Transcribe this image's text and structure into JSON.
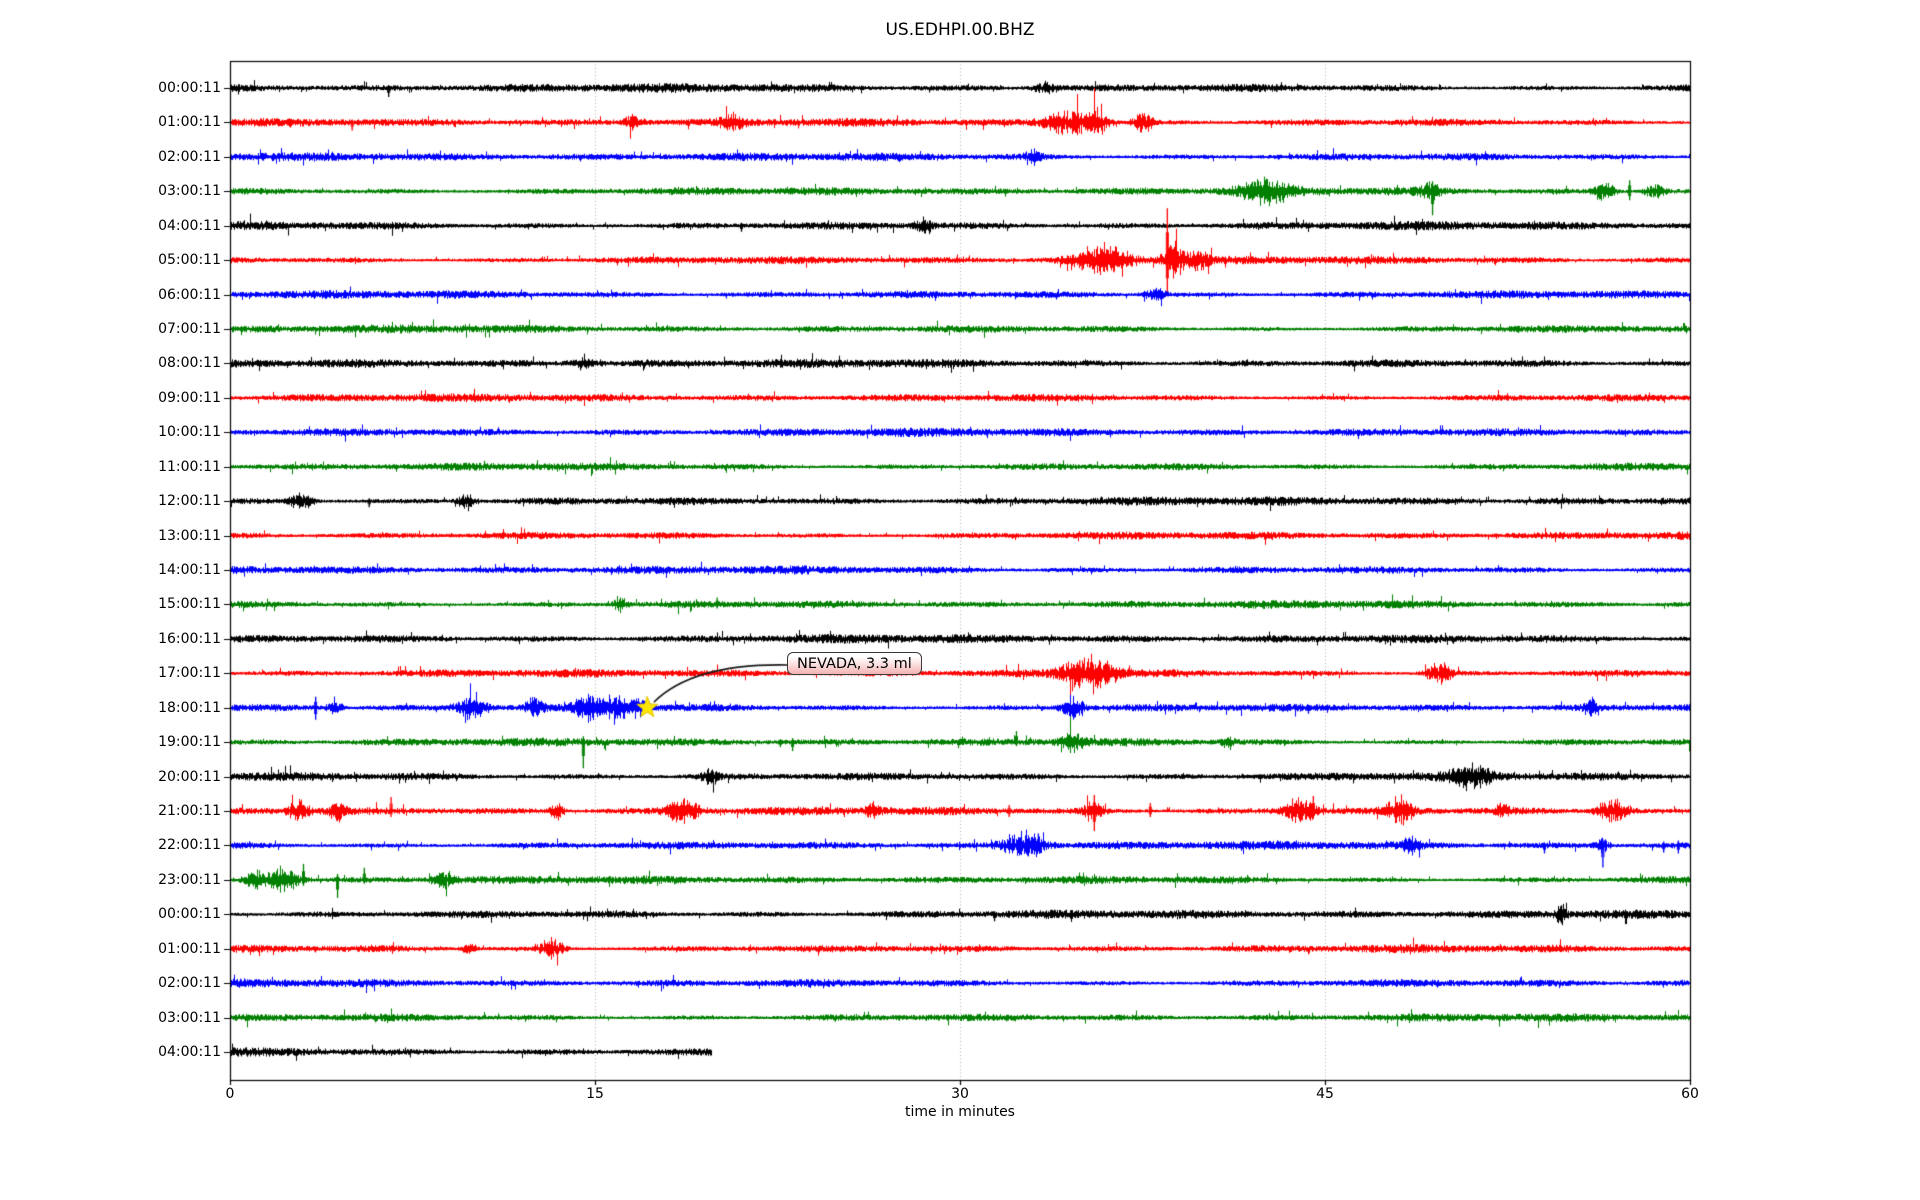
{
  "chart_data": {
    "type": "line",
    "variant": "helicorder-day-plot",
    "title": "US.EDHPI.00.BHZ",
    "xlabel": "time in minutes",
    "xlim": [
      0,
      60
    ],
    "x_ticks": [
      0,
      15,
      30,
      45,
      60
    ],
    "grid": {
      "vertical_dotted_at": [
        15,
        30,
        45
      ],
      "color": "#b0b0b0"
    },
    "color_cycle": [
      "#000000",
      "#ff0000",
      "#0000ff",
      "#008000"
    ],
    "annotation": {
      "text": "NEVADA, 3.3 ml",
      "row_index": 18,
      "row_label": "18:00:11",
      "minute": 17.15,
      "marker": "yellow-star",
      "star_color": "#ffe600",
      "box_colors": [
        "#ffffff",
        "#f3b2b2"
      ]
    },
    "rows": [
      {
        "label": "00:00:11",
        "color": "#000000",
        "base": 2.4,
        "end": 60,
        "events": [
          {
            "t": "spike",
            "m": 6.5,
            "up": 3,
            "dn": 9
          },
          {
            "t": "burst",
            "m": 33.5,
            "d": 0.8,
            "a": 4
          },
          {
            "t": "spike",
            "m": 43.0,
            "up": 4,
            "dn": 4
          }
        ]
      },
      {
        "label": "01:00:11",
        "color": "#ff0000",
        "base": 2.2,
        "end": 60,
        "events": [
          {
            "t": "spike",
            "m": 5.0,
            "up": 3,
            "dn": 8
          },
          {
            "t": "burst",
            "m": 16.6,
            "d": 0.7,
            "a": 5
          },
          {
            "t": "burst",
            "m": 20.6,
            "d": 0.8,
            "a": 5
          },
          {
            "t": "burst",
            "m": 34.3,
            "d": 1.6,
            "a": 8
          },
          {
            "t": "burst",
            "m": 35.6,
            "d": 1.0,
            "a": 7
          },
          {
            "t": "burst",
            "m": 37.5,
            "d": 0.7,
            "a": 6
          }
        ]
      },
      {
        "label": "02:00:11",
        "color": "#0000ff",
        "base": 2.3,
        "end": 60,
        "events": [
          {
            "t": "burst",
            "m": 33.0,
            "d": 0.6,
            "a": 4
          }
        ]
      },
      {
        "label": "03:00:11",
        "color": "#008000",
        "base": 2.2,
        "end": 60,
        "events": [
          {
            "t": "burst",
            "m": 42.5,
            "d": 1.8,
            "a": 8
          },
          {
            "t": "spike",
            "m": 42.0,
            "up": 9,
            "dn": 9
          },
          {
            "t": "spike",
            "m": 49.4,
            "up": 10,
            "dn": 24
          },
          {
            "t": "burst",
            "m": 49.3,
            "d": 0.8,
            "a": 5
          },
          {
            "t": "burst",
            "m": 56.4,
            "d": 0.8,
            "a": 6
          },
          {
            "t": "spike",
            "m": 57.5,
            "up": 11,
            "dn": 9
          },
          {
            "t": "burst",
            "m": 58.6,
            "d": 0.8,
            "a": 5
          }
        ]
      },
      {
        "label": "04:00:11",
        "color": "#000000",
        "base": 2.4,
        "end": 60,
        "events": [
          {
            "t": "spike",
            "m": 21.0,
            "up": 3,
            "dn": 6
          },
          {
            "t": "burst",
            "m": 28.5,
            "d": 0.6,
            "a": 4
          }
        ]
      },
      {
        "label": "05:00:11",
        "color": "#ff0000",
        "base": 2.2,
        "end": 60,
        "events": [
          {
            "t": "burst",
            "m": 35.8,
            "d": 2.2,
            "a": 8
          },
          {
            "t": "spike",
            "m": 35.0,
            "up": 5,
            "dn": 10
          },
          {
            "t": "spike",
            "m": 36.3,
            "up": 5,
            "dn": 12
          },
          {
            "t": "spike",
            "m": 38.5,
            "up": 52,
            "dn": 34
          },
          {
            "t": "burst",
            "m": 38.8,
            "d": 0.8,
            "a": 10
          },
          {
            "t": "burst",
            "m": 39.8,
            "d": 0.8,
            "a": 5
          }
        ]
      },
      {
        "label": "06:00:11",
        "color": "#0000ff",
        "base": 2.3,
        "end": 60,
        "events": [
          {
            "t": "burst",
            "m": 38.0,
            "d": 0.8,
            "a": 4
          }
        ]
      },
      {
        "label": "07:00:11",
        "color": "#008000",
        "base": 2.2,
        "end": 60,
        "events": []
      },
      {
        "label": "08:00:11",
        "color": "#000000",
        "base": 2.4,
        "end": 60,
        "events": [
          {
            "t": "burst",
            "m": 14.5,
            "d": 1.0,
            "a": 3
          }
        ]
      },
      {
        "label": "09:00:11",
        "color": "#ff0000",
        "base": 2.2,
        "end": 60,
        "events": []
      },
      {
        "label": "10:00:11",
        "color": "#0000ff",
        "base": 2.3,
        "end": 60,
        "events": []
      },
      {
        "label": "11:00:11",
        "color": "#008000",
        "base": 2.2,
        "end": 60,
        "events": []
      },
      {
        "label": "12:00:11",
        "color": "#000000",
        "base": 2.4,
        "end": 60,
        "events": [
          {
            "t": "burst",
            "m": 2.9,
            "d": 0.9,
            "a": 5
          },
          {
            "t": "spike",
            "m": 5.7,
            "up": 3,
            "dn": 6
          },
          {
            "t": "burst",
            "m": 9.7,
            "d": 0.7,
            "a": 4
          }
        ]
      },
      {
        "label": "13:00:11",
        "color": "#ff0000",
        "base": 2.2,
        "end": 60,
        "events": []
      },
      {
        "label": "14:00:11",
        "color": "#0000ff",
        "base": 2.3,
        "end": 60,
        "events": []
      },
      {
        "label": "15:00:11",
        "color": "#008000",
        "base": 2.2,
        "end": 60,
        "events": [
          {
            "t": "burst",
            "m": 16.0,
            "d": 0.5,
            "a": 4
          },
          {
            "t": "spike",
            "m": 20.0,
            "up": 7,
            "dn": 4
          }
        ]
      },
      {
        "label": "16:00:11",
        "color": "#000000",
        "base": 2.4,
        "end": 60,
        "events": []
      },
      {
        "label": "17:00:11",
        "color": "#ff0000",
        "base": 2.2,
        "end": 60,
        "events": [
          {
            "t": "burst",
            "m": 35.3,
            "d": 1.9,
            "a": 10
          },
          {
            "t": "spike",
            "m": 34.9,
            "up": 13,
            "dn": 13
          },
          {
            "t": "spike",
            "m": 36.1,
            "up": 9,
            "dn": 9
          },
          {
            "t": "burst",
            "m": 49.7,
            "d": 0.9,
            "a": 6
          }
        ]
      },
      {
        "label": "18:00:11",
        "color": "#0000ff",
        "base": 2.3,
        "end": 60,
        "events": [
          {
            "t": "spike",
            "m": 3.5,
            "up": 11,
            "dn": 12
          },
          {
            "t": "burst",
            "m": 4.3,
            "d": 0.5,
            "a": 5
          },
          {
            "t": "burst",
            "m": 9.9,
            "d": 1.1,
            "a": 7
          },
          {
            "t": "burst",
            "m": 12.5,
            "d": 0.6,
            "a": 6
          },
          {
            "t": "burst",
            "m": 14.6,
            "d": 0.9,
            "a": 7
          },
          {
            "t": "burst",
            "m": 15.8,
            "d": 1.2,
            "a": 8
          },
          {
            "t": "burst",
            "m": 16.8,
            "d": 0.6,
            "a": 6
          },
          {
            "t": "burst",
            "m": 34.6,
            "d": 0.8,
            "a": 8
          },
          {
            "t": "spike",
            "m": 44.3,
            "up": 3,
            "dn": 6
          },
          {
            "t": "burst",
            "m": 55.9,
            "d": 0.5,
            "a": 5
          }
        ]
      },
      {
        "label": "19:00:11",
        "color": "#008000",
        "base": 2.2,
        "end": 60,
        "events": [
          {
            "t": "spike",
            "m": 14.5,
            "up": 6,
            "dn": 26
          },
          {
            "t": "spike",
            "m": 22.6,
            "up": 3,
            "dn": 5
          },
          {
            "t": "spike",
            "m": 23.1,
            "up": 4,
            "dn": 9
          },
          {
            "t": "spike",
            "m": 32.3,
            "up": 11,
            "dn": 4
          },
          {
            "t": "burst",
            "m": 34.6,
            "d": 0.9,
            "a": 5
          },
          {
            "t": "burst",
            "m": 41.0,
            "d": 0.4,
            "a": 4
          }
        ]
      },
      {
        "label": "20:00:11",
        "color": "#000000",
        "base": 2.4,
        "end": 60,
        "events": [
          {
            "t": "burst",
            "m": 19.7,
            "d": 0.6,
            "a": 5
          },
          {
            "t": "burst",
            "m": 51.0,
            "d": 1.4,
            "a": 6
          },
          {
            "t": "spike",
            "m": 51.2,
            "up": 8,
            "dn": 5
          }
        ]
      },
      {
        "label": "21:00:11",
        "color": "#ff0000",
        "base": 2.2,
        "end": 60,
        "events": [
          {
            "t": "burst",
            "m": 2.8,
            "d": 0.7,
            "a": 6
          },
          {
            "t": "burst",
            "m": 4.4,
            "d": 0.5,
            "a": 5
          },
          {
            "t": "spike",
            "m": 6.6,
            "up": 14,
            "dn": 6
          },
          {
            "t": "burst",
            "m": 13.4,
            "d": 0.5,
            "a": 5
          },
          {
            "t": "burst",
            "m": 18.6,
            "d": 1.2,
            "a": 7
          },
          {
            "t": "burst",
            "m": 26.4,
            "d": 0.5,
            "a": 5
          },
          {
            "t": "spike",
            "m": 32.0,
            "up": 6,
            "dn": 6
          },
          {
            "t": "spike",
            "m": 35.5,
            "up": 16,
            "dn": 20
          },
          {
            "t": "burst",
            "m": 35.5,
            "d": 0.6,
            "a": 8
          },
          {
            "t": "spike",
            "m": 37.8,
            "up": 8,
            "dn": 6
          },
          {
            "t": "burst",
            "m": 44.0,
            "d": 1.2,
            "a": 8
          },
          {
            "t": "spike",
            "m": 44.5,
            "up": 15,
            "dn": 5
          },
          {
            "t": "burst",
            "m": 48.1,
            "d": 1.0,
            "a": 8
          },
          {
            "t": "burst",
            "m": 52.3,
            "d": 0.5,
            "a": 5
          },
          {
            "t": "burst",
            "m": 56.8,
            "d": 1.2,
            "a": 7
          },
          {
            "t": "spike",
            "m": 57.0,
            "up": 8,
            "dn": 10
          }
        ]
      },
      {
        "label": "22:00:11",
        "color": "#0000ff",
        "base": 2.3,
        "end": 60,
        "events": [
          {
            "t": "burst",
            "m": 32.6,
            "d": 1.6,
            "a": 8
          },
          {
            "t": "spike",
            "m": 33.2,
            "up": 12,
            "dn": 6
          },
          {
            "t": "burst",
            "m": 48.5,
            "d": 0.6,
            "a": 4
          },
          {
            "t": "spike",
            "m": 54.0,
            "up": 3,
            "dn": 8
          },
          {
            "t": "spike",
            "m": 56.4,
            "up": 6,
            "dn": 22
          },
          {
            "t": "burst",
            "m": 56.4,
            "d": 0.5,
            "a": 5
          },
          {
            "t": "spike",
            "m": 58.9,
            "up": 4,
            "dn": 7
          },
          {
            "t": "spike",
            "m": 59.5,
            "up": 5,
            "dn": 8
          }
        ]
      },
      {
        "label": "23:00:11",
        "color": "#008000",
        "base": 2.2,
        "end": 60,
        "events": [
          {
            "t": "burst",
            "m": 1.0,
            "d": 0.8,
            "a": 6
          },
          {
            "t": "burst",
            "m": 2.2,
            "d": 1.2,
            "a": 8
          },
          {
            "t": "spike",
            "m": 3.0,
            "up": 16,
            "dn": 6
          },
          {
            "t": "spike",
            "m": 4.4,
            "up": 6,
            "dn": 18
          },
          {
            "t": "spike",
            "m": 5.5,
            "up": 12,
            "dn": 4
          },
          {
            "t": "burst",
            "m": 8.8,
            "d": 0.8,
            "a": 5
          }
        ]
      },
      {
        "label": "00:00:11",
        "color": "#000000",
        "base": 2.4,
        "end": 60,
        "events": [
          {
            "t": "spike",
            "m": 31.4,
            "up": 3,
            "dn": 7
          },
          {
            "t": "spike",
            "m": 54.7,
            "up": 9,
            "dn": 9
          },
          {
            "t": "burst",
            "m": 54.7,
            "d": 0.4,
            "a": 5
          }
        ]
      },
      {
        "label": "01:00:11",
        "color": "#ff0000",
        "base": 2.2,
        "end": 60,
        "events": [
          {
            "t": "burst",
            "m": 9.8,
            "d": 0.5,
            "a": 4
          },
          {
            "t": "burst",
            "m": 13.2,
            "d": 0.9,
            "a": 6
          }
        ]
      },
      {
        "label": "02:00:11",
        "color": "#0000ff",
        "base": 2.3,
        "end": 60,
        "events": []
      },
      {
        "label": "03:00:11",
        "color": "#008000",
        "base": 2.2,
        "end": 60,
        "events": []
      },
      {
        "label": "04:00:11",
        "color": "#000000",
        "base": 2.4,
        "end": 19.8,
        "events": []
      }
    ]
  }
}
